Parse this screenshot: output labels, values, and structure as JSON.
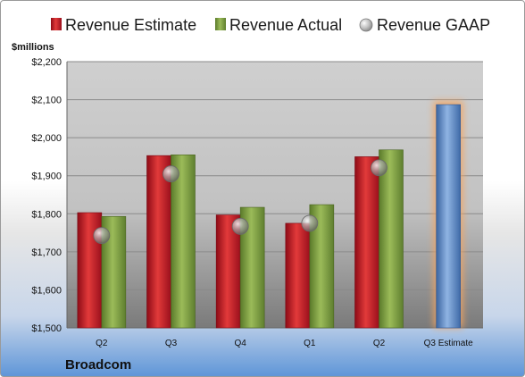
{
  "chart_data": {
    "type": "bar",
    "unit_label": "$millions",
    "categories": [
      "Q2",
      "Q3",
      "Q4",
      "Q1",
      "Q2",
      "Q3 Estimate"
    ],
    "series": [
      {
        "name": "Revenue Estimate",
        "type": "bar",
        "color": "#c8102e",
        "values": [
          1803,
          1953,
          1797,
          1775,
          1950,
          null
        ]
      },
      {
        "name": "Revenue Actual",
        "type": "bar",
        "color": "#77933c",
        "values": [
          1793,
          1955,
          1817,
          1824,
          1968,
          null
        ]
      },
      {
        "name": "Revenue GAAP",
        "type": "marker",
        "color": "#a0a0a0",
        "values": [
          1743,
          1905,
          1767,
          1775,
          1921,
          null
        ]
      },
      {
        "name": "Q3 Estimate",
        "type": "bar",
        "color": "#4f81bd",
        "highlight": "#f4a460",
        "values": [
          null,
          null,
          null,
          null,
          null,
          2087
        ]
      }
    ],
    "ylim": [
      1500,
      2200
    ],
    "yticks": [
      "$1,500",
      "$1,600",
      "$1,700",
      "$1,800",
      "$1,900",
      "$2,000",
      "$2,100",
      "$2,200"
    ],
    "ytick_values": [
      1500,
      1600,
      1700,
      1800,
      1900,
      2000,
      2100,
      2200
    ],
    "grid": true,
    "legend_position": "top",
    "company": "Broadcom"
  }
}
